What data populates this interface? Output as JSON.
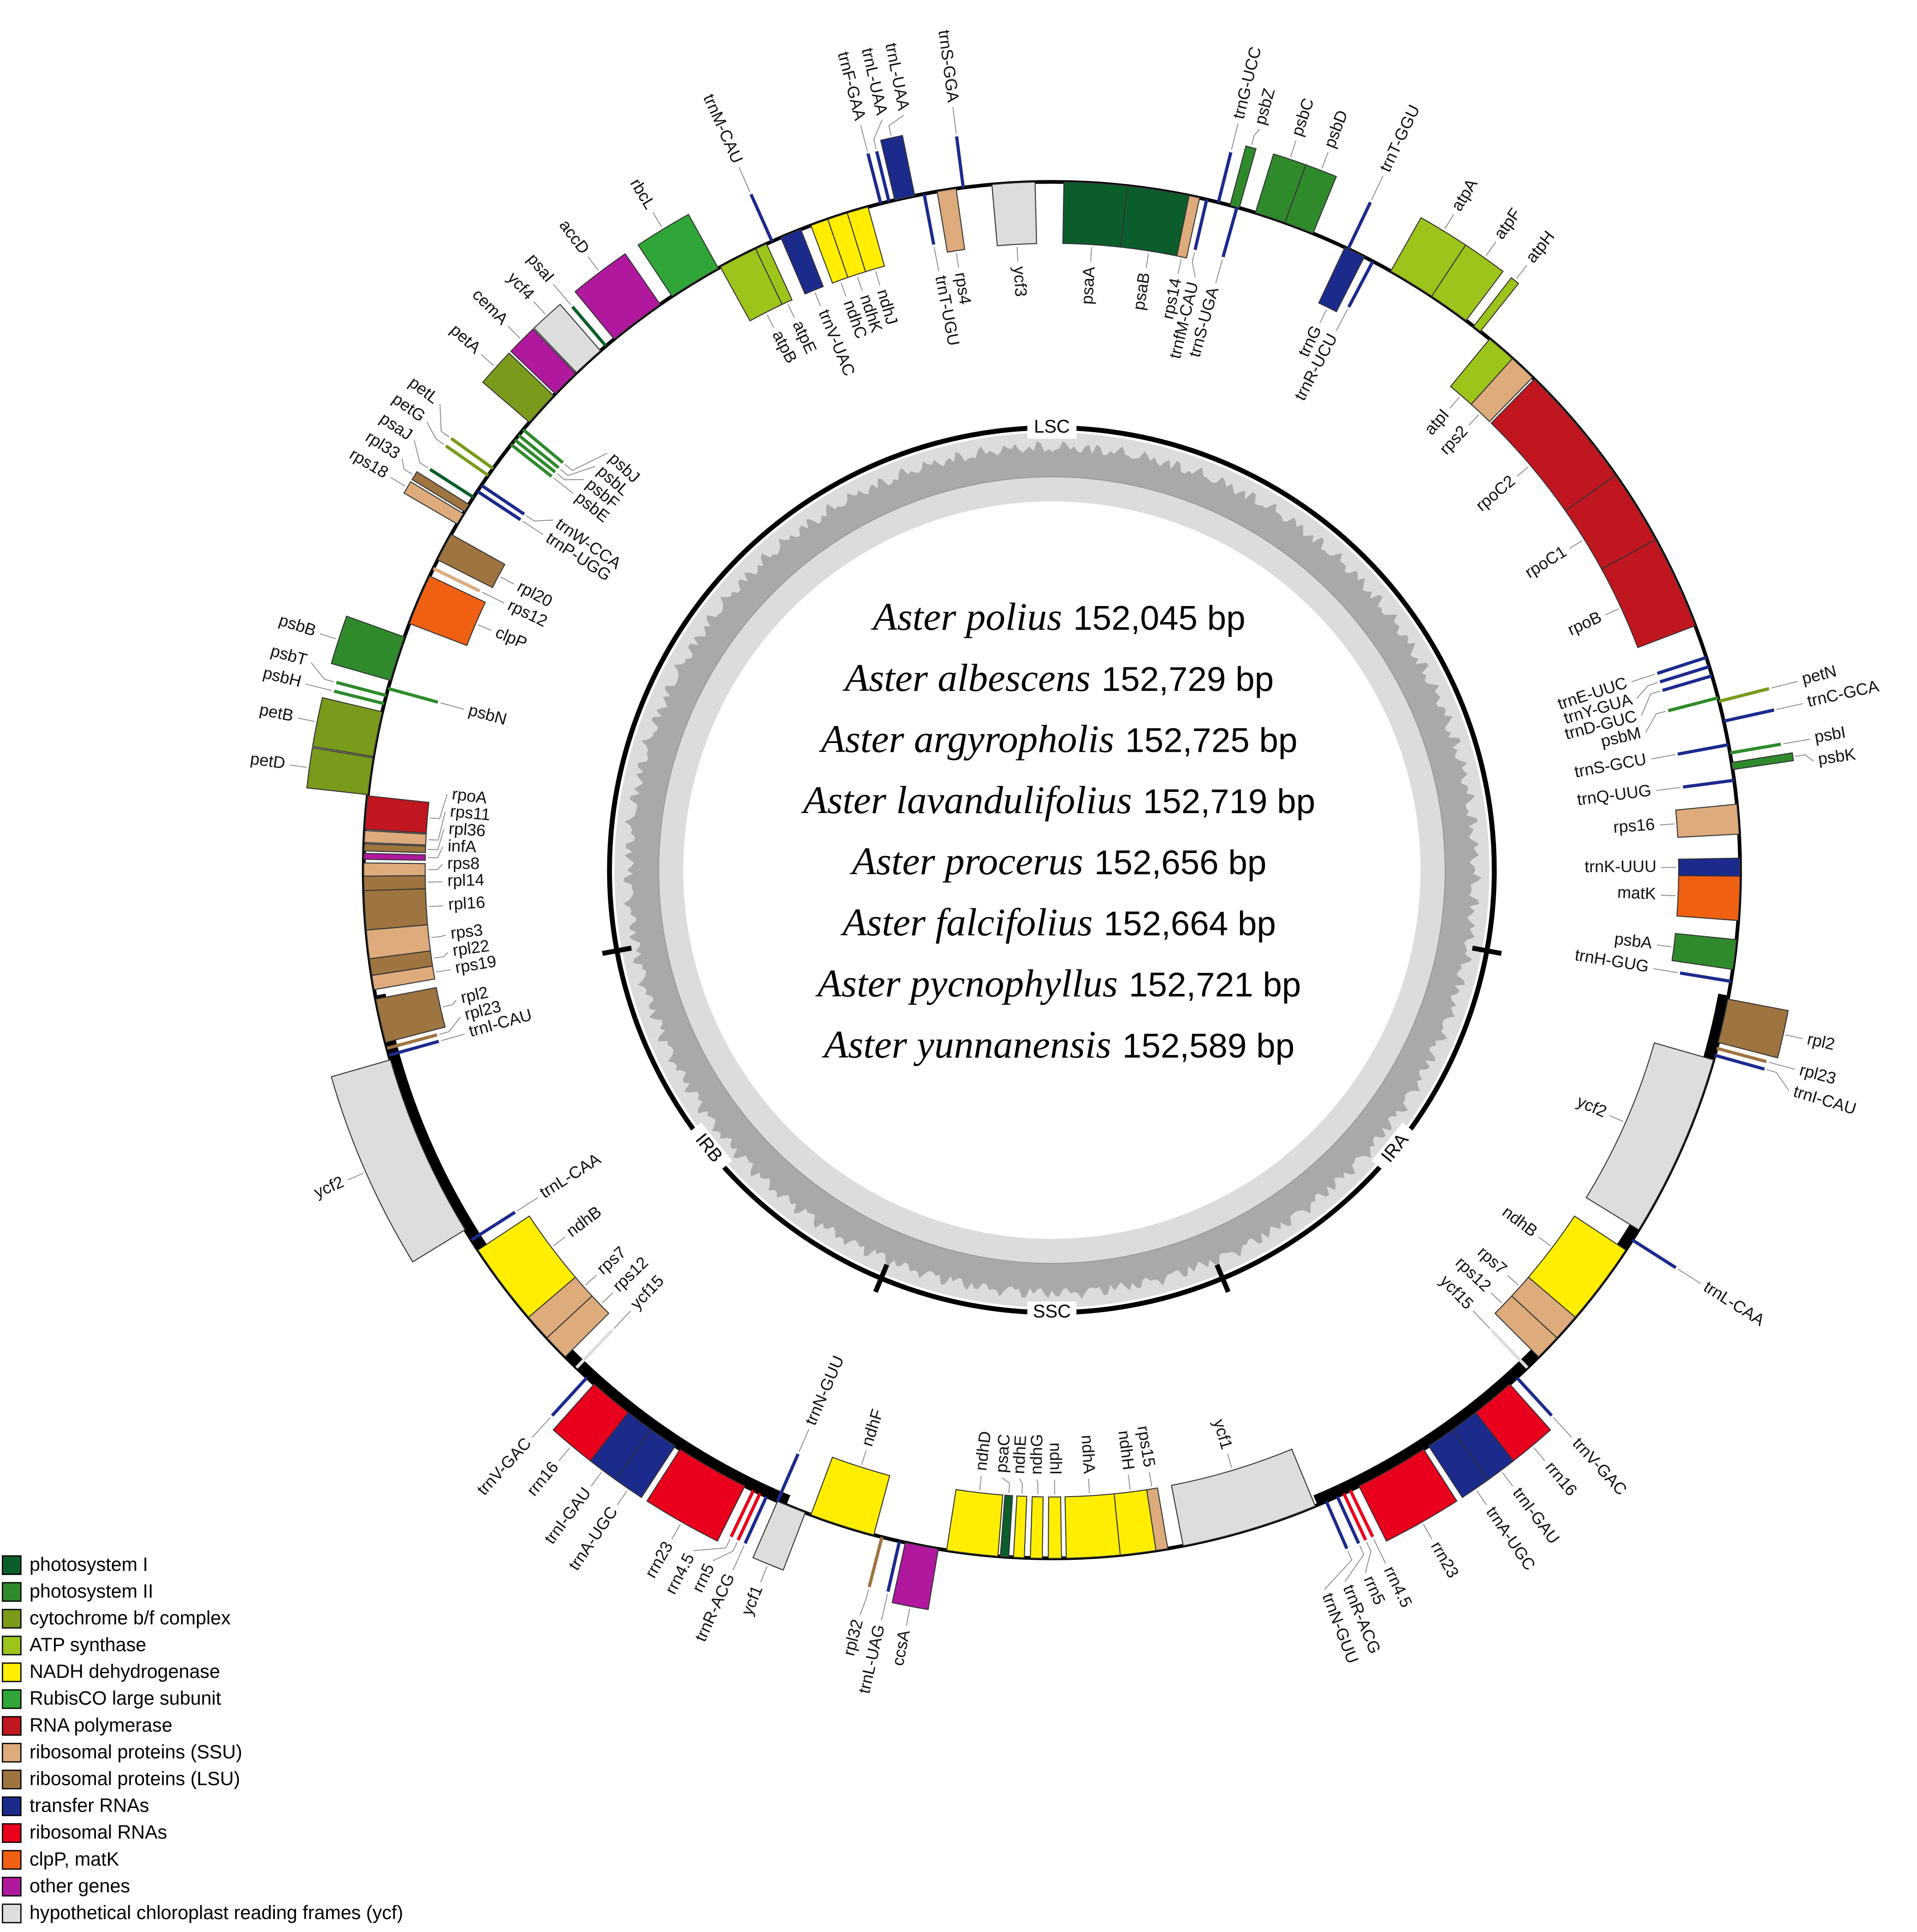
{
  "genomes": [
    {
      "name": "Aster polius",
      "size": "152,045 bp"
    },
    {
      "name": "Aster albescens",
      "size": "152,729 bp"
    },
    {
      "name": "Aster argyropholis",
      "size": "152,725 bp"
    },
    {
      "name": "Aster lavandulifolius",
      "size": "152,719 bp"
    },
    {
      "name": "Aster procerus",
      "size": "152,656 bp"
    },
    {
      "name": "Aster falcifolius",
      "size": "152,664 bp"
    },
    {
      "name": "Aster pycnophyllus",
      "size": "152,721 bp"
    },
    {
      "name": "Aster yunnanensis",
      "size": "152,589 bp"
    }
  ],
  "regions": {
    "lsc": "LSC",
    "ira": "IRA",
    "ssc": "SSC",
    "irb": "IRB"
  },
  "genes": [
    "psaA",
    "psaB",
    "rps14",
    "trnfM-CAU",
    "trnG-UCC",
    "psbZ",
    "trnS-UGA",
    "psbC",
    "psbD",
    "trnT-GGU",
    "trnG",
    "trnR-UCU",
    "atpA",
    "atpF",
    "atpH",
    "atpI",
    "rps2",
    "rpoC2",
    "rpoC1",
    "rpoB",
    "trnE-UUC",
    "trnY-GUA",
    "trnD-GUC",
    "psbM",
    "petN",
    "trnC-GCA",
    "trnS-GCU",
    "psbI",
    "psbK",
    "trnQ-UUG",
    "rps16",
    "trnK-UUU",
    "matK",
    "psbA",
    "trnH-GUG",
    "rpl2",
    "rpl23",
    "trnI-CAU",
    "ycf2",
    "trnL-CAA",
    "ndhB",
    "rps7",
    "rps12",
    "ycf15",
    "trnV-GAC",
    "rrn16",
    "trnI-GAU",
    "trnA-UGC",
    "rrn23",
    "rrn4.5",
    "rrn5",
    "trnR-ACG",
    "trnN-GUU",
    "ycf1",
    "rps15",
    "ndhH",
    "ndhA",
    "ndhI",
    "ndhG",
    "ndhE",
    "psaC",
    "ndhD",
    "ccsA",
    "trnL-UAG",
    "rpl32",
    "ndhF",
    "ycf1",
    "trnN-GUU",
    "trnR-ACG",
    "rrn5",
    "rrn4.5",
    "rrn23",
    "trnA-UGC",
    "trnI-GAU",
    "rrn16",
    "trnV-GAC",
    "ycf15",
    "rps12",
    "rps7",
    "ndhB",
    "trnL-CAA",
    "ycf2",
    "trnI-CAU",
    "rpl23",
    "rpl2",
    "rps19",
    "rpl22",
    "rps3",
    "rpl16",
    "rpl14",
    "rps8",
    "infA",
    "rpl36",
    "rps11",
    "rpoA",
    "petD",
    "petB",
    "psbH",
    "psbT",
    "psbN",
    "psbB",
    "clpP",
    "rps12",
    "rpl20",
    "rps18",
    "rpl33",
    "psaJ",
    "trnP-UGG",
    "trnW-CCA",
    "petG",
    "petL",
    "psbE",
    "psbF",
    "psbL",
    "psbJ",
    "petA",
    "cemA",
    "ycf4",
    "psaI",
    "accD",
    "rbcL",
    "atpB",
    "atpE",
    "trnM-CAU",
    "trnV-UAC",
    "ndhC",
    "ndhK",
    "ndhJ",
    "trnF-GAA",
    "trnL-UAA",
    "trnL-UAA",
    "trnT-UGU",
    "rps4",
    "trnS-GGA",
    "ycf3"
  ],
  "legend": [
    {
      "label": "photosystem I",
      "color": "#0b5e2b"
    },
    {
      "label": "photosystem II",
      "color": "#2f8a2c"
    },
    {
      "label": "cytochrome b/f complex",
      "color": "#7a9a1c"
    },
    {
      "label": "ATP synthase",
      "color": "#9dc41a"
    },
    {
      "label": "NADH dehydrogenase",
      "color": "#ffee00"
    },
    {
      "label": "RubisCO large subunit",
      "color": "#2fa637"
    },
    {
      "label": "RNA polymerase",
      "color": "#c0161f"
    },
    {
      "label": "ribosomal proteins (SSU)",
      "color": "#ddab7c"
    },
    {
      "label": "ribosomal proteins (LSU)",
      "color": "#9e7440"
    },
    {
      "label": "transfer RNAs",
      "color": "#1c2a8c"
    },
    {
      "label": "ribosomal RNAs",
      "color": "#e8001c"
    },
    {
      "label": "clpP, matK",
      "color": "#f06012"
    },
    {
      "label": "other genes",
      "color": "#b0189e"
    },
    {
      "label": "hypothetical chloroplast reading frames (ycf)",
      "color": "#dddddd"
    }
  ]
}
